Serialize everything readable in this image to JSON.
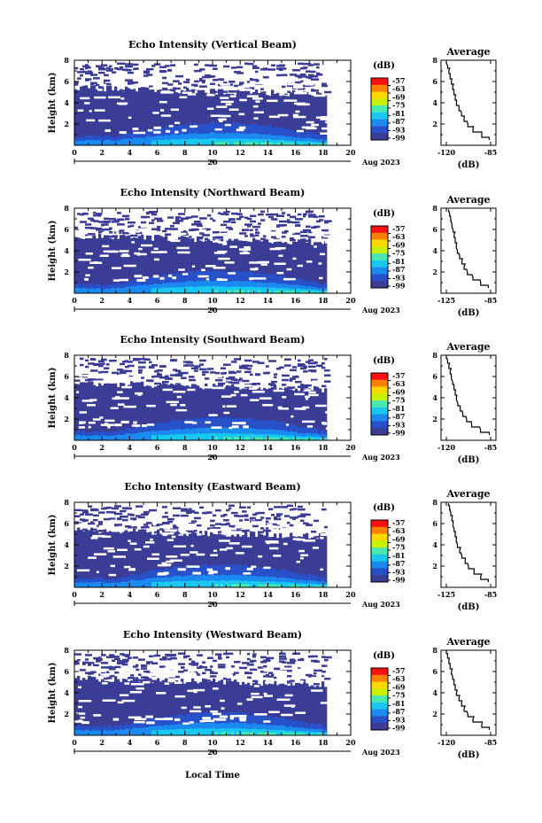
{
  "figure": {
    "xlabel": "Local Time",
    "date_label": "Aug 2023",
    "colorbar_unit": "(dB)",
    "colorbar_ticks": [
      "-57",
      "-63",
      "-69",
      "-75",
      "-81",
      "-87",
      "-93",
      "-99"
    ],
    "colormap": [
      "#ff1010",
      "#ff7f00",
      "#ffd700",
      "#c8f000",
      "#49e8b0",
      "#18c8f0",
      "#1a8af0",
      "#2850c8",
      "#3a3c96"
    ],
    "background_color": "#3a3c96",
    "gap_color": "#ffffff"
  },
  "chart_data": [
    {
      "type": "heatmap",
      "title": "Echo Intensity (Vertical Beam)",
      "ylabel": "Height (km)",
      "xlim": [
        0,
        20
      ],
      "ylim": [
        0,
        8
      ],
      "xticks": [
        "0",
        "2",
        "4",
        "6",
        "8",
        "10",
        "12",
        "14",
        "16",
        "18",
        "20"
      ],
      "yticks": [
        "2",
        "4",
        "6",
        "8"
      ],
      "date_tick": "20",
      "data_end_hour": 18.2,
      "profile": {
        "title": "Average",
        "xlabel": "(dB)",
        "xticks": [
          "-120",
          "-85"
        ],
        "yticks": [
          "2",
          "4",
          "6",
          "8"
        ],
        "height_km": [
          0.5,
          1.0,
          1.5,
          2.0,
          2.5,
          3.0,
          3.5,
          4.0,
          4.5,
          5.0,
          5.5,
          6.0,
          6.5,
          7.0,
          7.5,
          7.9
        ],
        "db": [
          -86,
          -92,
          -99,
          -103,
          -106,
          -108,
          -110,
          -112,
          -113,
          -114,
          -115,
          -116,
          -117,
          -118,
          -119,
          -120
        ]
      }
    },
    {
      "type": "heatmap",
      "title": "Echo Intensity (Northward Beam)",
      "ylabel": "Height (km)",
      "xlim": [
        0,
        20
      ],
      "ylim": [
        0,
        8
      ],
      "xticks": [
        "0",
        "2",
        "4",
        "6",
        "8",
        "10",
        "12",
        "14",
        "16",
        "18",
        "20"
      ],
      "yticks": [
        "2",
        "4",
        "6",
        "8"
      ],
      "date_tick": "20",
      "data_end_hour": 18.2,
      "profile": {
        "title": "Average",
        "xlabel": "(dB)",
        "xticks": [
          "-125",
          "-85"
        ],
        "yticks": [
          "2",
          "4",
          "6",
          "8"
        ],
        "height_km": [
          0.5,
          1.0,
          1.5,
          2.0,
          2.5,
          3.0,
          3.5,
          4.0,
          4.5,
          5.0,
          5.5,
          6.0,
          6.5,
          7.0,
          7.5,
          7.9
        ],
        "db": [
          -87,
          -94,
          -101,
          -106,
          -109,
          -111,
          -113,
          -115,
          -116,
          -117,
          -118,
          -119,
          -120,
          -121,
          -122,
          -123
        ]
      }
    },
    {
      "type": "heatmap",
      "title": "Echo Intensity (Southward Beam)",
      "ylabel": "Height (km)",
      "xlim": [
        0,
        20
      ],
      "ylim": [
        0,
        8
      ],
      "xticks": [
        "0",
        "2",
        "4",
        "6",
        "8",
        "10",
        "12",
        "14",
        "16",
        "18",
        "20"
      ],
      "yticks": [
        "2",
        "4",
        "6",
        "8"
      ],
      "date_tick": "20",
      "data_end_hour": 18.2,
      "profile": {
        "title": "Average",
        "xlabel": "(dB)",
        "xticks": [
          "-120",
          "-85"
        ],
        "yticks": [
          "2",
          "4",
          "6",
          "8"
        ],
        "height_km": [
          0.5,
          1.0,
          1.5,
          2.0,
          2.5,
          3.0,
          3.5,
          4.0,
          4.5,
          5.0,
          5.5,
          6.0,
          6.5,
          7.0,
          7.5,
          7.9
        ],
        "db": [
          -86,
          -93,
          -100,
          -104,
          -107,
          -109,
          -111,
          -112,
          -113,
          -114,
          -115,
          -116,
          -117,
          -118,
          -119,
          -120
        ]
      }
    },
    {
      "type": "heatmap",
      "title": "Echo Intensity (Eastward Beam)",
      "ylabel": "Height (km)",
      "xlim": [
        0,
        20
      ],
      "ylim": [
        0,
        8
      ],
      "xticks": [
        "0",
        "2",
        "4",
        "6",
        "8",
        "10",
        "12",
        "14",
        "16",
        "18",
        "20"
      ],
      "yticks": [
        "2",
        "4",
        "6",
        "8"
      ],
      "date_tick": "20",
      "data_end_hour": 18.2,
      "profile": {
        "title": "Average",
        "xlabel": "(dB)",
        "xticks": [
          "-125",
          "-85"
        ],
        "yticks": [
          "2",
          "4",
          "6",
          "8"
        ],
        "height_km": [
          0.5,
          1.0,
          1.5,
          2.0,
          2.5,
          3.0,
          3.5,
          4.0,
          4.5,
          5.0,
          5.5,
          6.0,
          6.5,
          7.0,
          7.5,
          7.9
        ],
        "db": [
          -87,
          -94,
          -100,
          -105,
          -108,
          -111,
          -113,
          -115,
          -116,
          -117,
          -118,
          -119,
          -120,
          -121,
          -122,
          -123
        ]
      }
    },
    {
      "type": "heatmap",
      "title": "Echo Intensity (Westward Beam)",
      "ylabel": "Height (km)",
      "xlim": [
        0,
        20
      ],
      "ylim": [
        0,
        8
      ],
      "xticks": [
        "0",
        "2",
        "4",
        "6",
        "8",
        "10",
        "12",
        "14",
        "16",
        "18",
        "20"
      ],
      "yticks": [
        "2",
        "4",
        "6",
        "8"
      ],
      "date_tick": "20",
      "data_end_hour": 18.2,
      "profile": {
        "title": "Average",
        "xlabel": "(dB)",
        "xticks": [
          "-120",
          "-85"
        ],
        "yticks": [
          "2",
          "4",
          "6",
          "8"
        ],
        "height_km": [
          0.5,
          1.0,
          1.5,
          2.0,
          2.5,
          3.0,
          3.5,
          4.0,
          4.5,
          5.0,
          5.5,
          6.0,
          6.5,
          7.0,
          7.5,
          7.9
        ],
        "db": [
          -86,
          -92,
          -99,
          -103,
          -106,
          -108,
          -110,
          -112,
          -113,
          -114,
          -115,
          -116,
          -117,
          -118,
          -119,
          -120
        ]
      }
    }
  ]
}
